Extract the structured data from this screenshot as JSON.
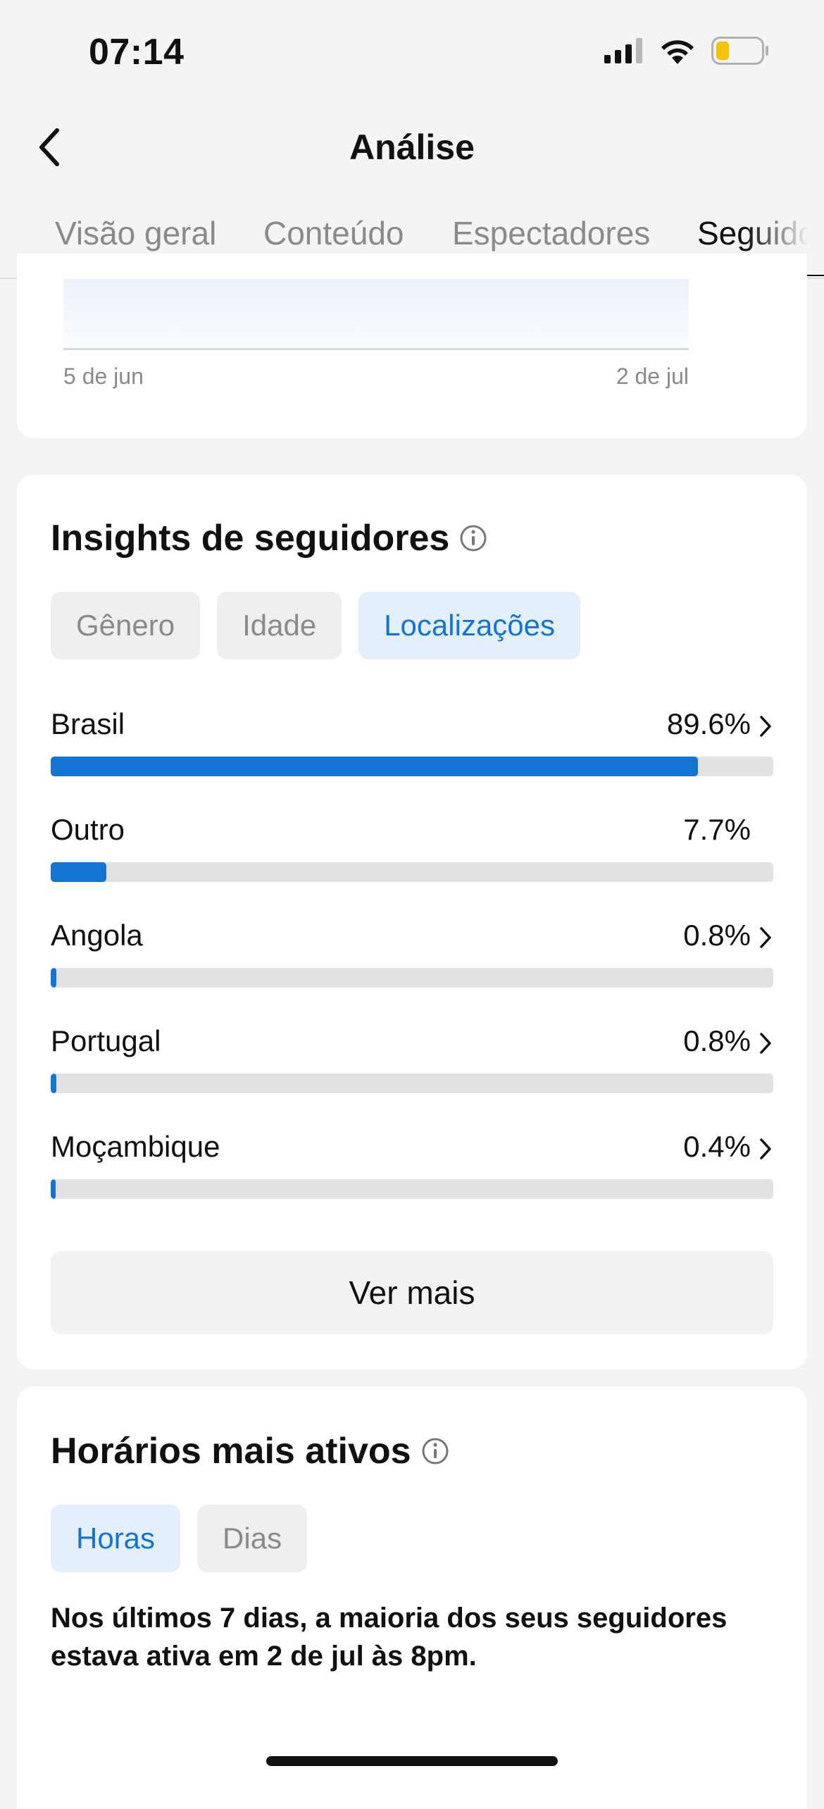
{
  "status_bar": {
    "time": "07:14",
    "icons": [
      "signal-icon",
      "wifi-icon",
      "battery-icon"
    ],
    "battery_color": "#f5c400"
  },
  "nav": {
    "title": "Análise",
    "back_icon": "chevron-left-icon"
  },
  "tabs": [
    {
      "label": "Visão geral",
      "active": false
    },
    {
      "label": "Conteúdo",
      "active": false
    },
    {
      "label": "Espectadores",
      "active": false
    },
    {
      "label": "Seguido",
      "active": true
    }
  ],
  "followers_chart": {
    "x_start": "5 de jun",
    "x_end": "2 de jul"
  },
  "insights": {
    "title": "Insights de seguidores",
    "info_icon": "info-icon",
    "chips": [
      {
        "label": "Gênero",
        "active": false
      },
      {
        "label": "Idade",
        "active": false
      },
      {
        "label": "Localizações",
        "active": true
      }
    ],
    "locations": [
      {
        "name": "Brasil",
        "percent_label": "89.6%",
        "percent": 89.6,
        "has_chevron": true
      },
      {
        "name": "Outro",
        "percent_label": "7.7%",
        "percent": 7.7,
        "has_chevron": false
      },
      {
        "name": "Angola",
        "percent_label": "0.8%",
        "percent": 0.8,
        "has_chevron": true
      },
      {
        "name": "Portugal",
        "percent_label": "0.8%",
        "percent": 0.8,
        "has_chevron": true
      },
      {
        "name": "Moçambique",
        "percent_label": "0.4%",
        "percent": 0.4,
        "has_chevron": true
      }
    ],
    "see_more_label": "Ver mais"
  },
  "active_times": {
    "title": "Horários mais ativos",
    "info_icon": "info-icon",
    "chips": [
      {
        "label": "Horas",
        "active": true
      },
      {
        "label": "Dias",
        "active": false
      }
    ],
    "summary": "Nos últimos 7 dias, a maioria dos seus seguidores estava ativa em 2 de jul às 8pm."
  },
  "colors": {
    "accent": "#1474d4",
    "chip_active_bg": "#e3effa",
    "track": "#e2e2e2",
    "background": "#f4f4f4"
  }
}
